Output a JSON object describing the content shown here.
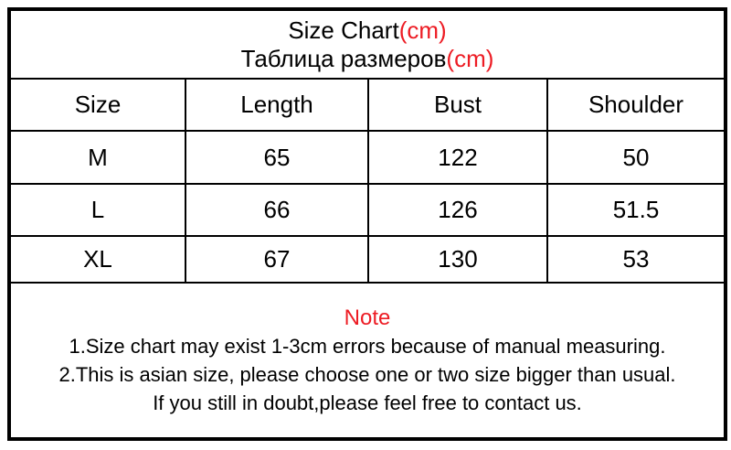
{
  "colors": {
    "accent_red": "#ed1c24",
    "text": "#000000",
    "background": "#ffffff",
    "border": "#000000"
  },
  "title": {
    "en_text": "Size Chart",
    "en_unit": "(cm)",
    "ru_text": "Таблица размеров",
    "ru_unit": "(cm)"
  },
  "note": {
    "heading": "Note",
    "lines": [
      "1.Size chart may exist 1-3cm errors because of manual measuring.",
      "2.This is asian size, please choose one or two size bigger than usual.",
      "If you still in doubt,please feel free to contact us."
    ]
  },
  "chart_data": {
    "type": "table",
    "title": "Size Chart(cm) / Таблица размеров(cm)",
    "unit": "cm",
    "columns": [
      "Size",
      "Length",
      "Bust",
      "Shoulder"
    ],
    "rows": [
      [
        "M",
        65,
        122,
        50
      ],
      [
        "L",
        66,
        126,
        51.5
      ],
      [
        "XL",
        67,
        130,
        53
      ]
    ],
    "layout_hints": {
      "grid": "on",
      "header_row": true,
      "title_rows_span_full_width": true,
      "note_row_spans_full_width": true
    }
  }
}
